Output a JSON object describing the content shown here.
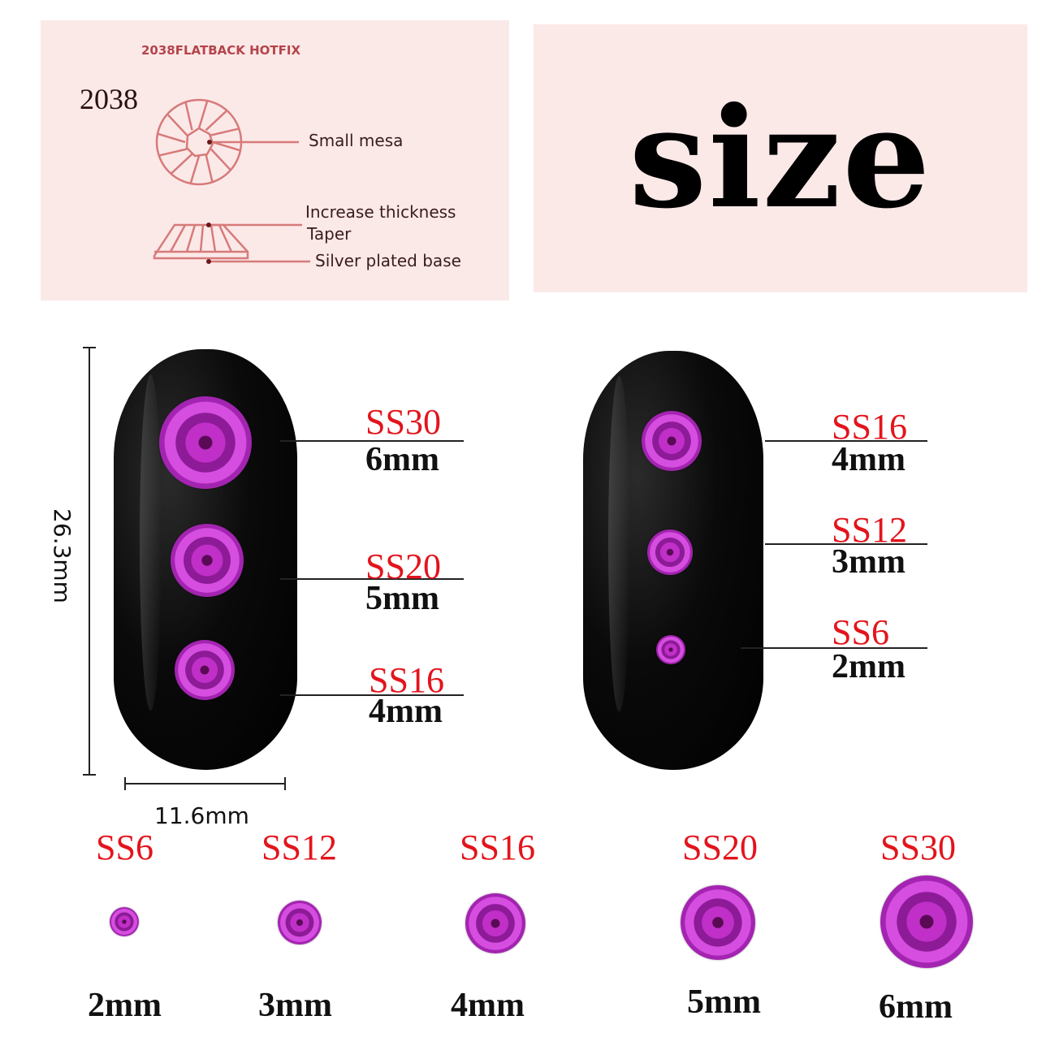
{
  "diagram": {
    "heading": "2038FLATBACK HOTFIX",
    "model": "2038",
    "labels": [
      "Small mesa",
      "Increase thickness",
      "Taper",
      "Silver plated base"
    ],
    "color": "#d77a7a"
  },
  "title": "size",
  "dimensions": {
    "height": "26.3mm",
    "width": "11.6mm"
  },
  "left_nail": [
    {
      "code": "SS30",
      "size": "6mm"
    },
    {
      "code": "SS20",
      "size": "5mm"
    },
    {
      "code": "SS16",
      "size": "4mm"
    }
  ],
  "right_nail": [
    {
      "code": "SS16",
      "size": "4mm"
    },
    {
      "code": "SS12",
      "size": "3mm"
    },
    {
      "code": "SS6",
      "size": "2mm"
    }
  ],
  "row": [
    {
      "code": "SS6",
      "size": "2mm"
    },
    {
      "code": "SS12",
      "size": "3mm"
    },
    {
      "code": "SS16",
      "size": "4mm"
    },
    {
      "code": "SS20",
      "size": "5mm"
    },
    {
      "code": "SS30",
      "size": "6mm"
    }
  ],
  "colors": {
    "label_red": "#e3141c",
    "gem": "#c02fc8",
    "panel": "#fbe9e8"
  }
}
